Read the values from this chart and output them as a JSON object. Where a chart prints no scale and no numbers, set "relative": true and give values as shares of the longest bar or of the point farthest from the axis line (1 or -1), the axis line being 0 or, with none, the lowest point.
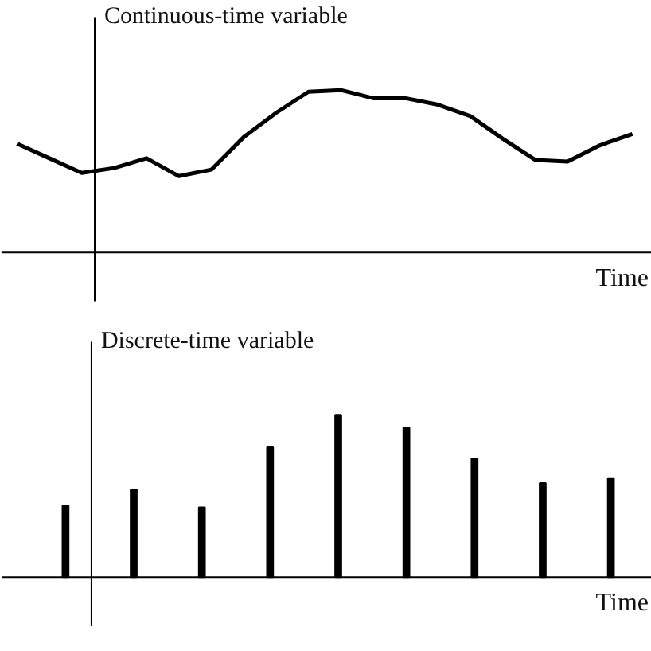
{
  "chart_data": [
    {
      "type": "line",
      "title": "Continuous-time variable",
      "xlabel": "Time",
      "relative": true,
      "color": "#000000",
      "marker": "none",
      "line_style": "solid",
      "categories": [
        null,
        null,
        null,
        null,
        null,
        null,
        null,
        null,
        null,
        null,
        null,
        null,
        null,
        null,
        null,
        null,
        null,
        null,
        null,
        null
      ],
      "values": [
        0.67,
        0.58,
        0.49,
        0.52,
        0.58,
        0.47,
        0.51,
        0.71,
        0.86,
        0.99,
        1,
        0.95,
        0.95,
        0.91,
        0.84,
        0.7,
        0.57,
        0.56,
        0.66,
        0.73
      ]
    },
    {
      "type": "bar",
      "title": "Discrete-time variable",
      "xlabel": "Time",
      "relative": true,
      "color": "#000000",
      "categories": [
        null,
        null,
        null,
        null,
        null,
        null,
        null,
        null,
        null
      ],
      "values": [
        0.44,
        0.54,
        0.43,
        0.8,
        1,
        0.92,
        0.73,
        0.58,
        0.61
      ]
    }
  ]
}
